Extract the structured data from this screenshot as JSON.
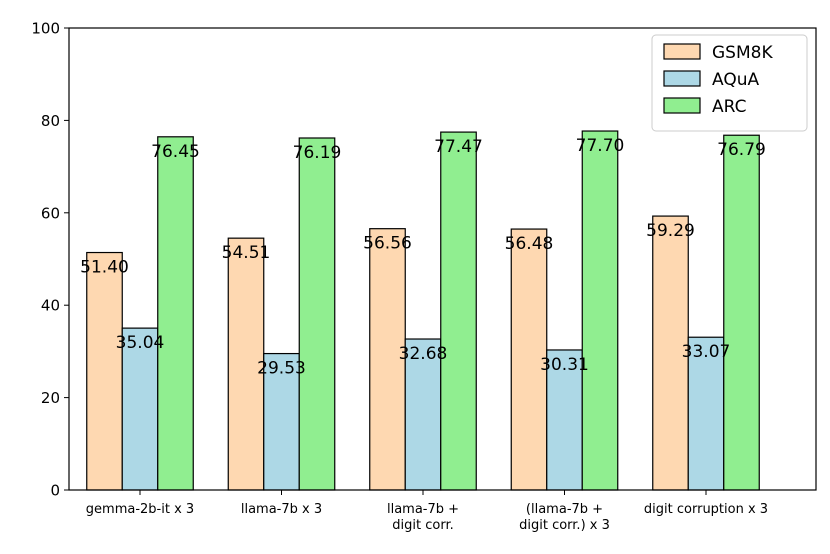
{
  "chart_data": {
    "type": "bar",
    "categories": [
      [
        "gemma-2b-it x 3"
      ],
      [
        "llama-7b x 3"
      ],
      [
        "llama-7b +",
        "digit corr."
      ],
      [
        "(llama-7b +",
        "digit corr.) x 3"
      ],
      [
        "digit corruption x 3"
      ]
    ],
    "series": [
      {
        "name": "GSM8K",
        "values": [
          51.4,
          54.51,
          56.56,
          56.48,
          59.29
        ],
        "labels": [
          "51.40",
          "54.51",
          "56.56",
          "56.48",
          "59.29"
        ],
        "color": "#fed8b1"
      },
      {
        "name": "AQuA",
        "values": [
          35.04,
          29.53,
          32.68,
          30.31,
          33.07
        ],
        "labels": [
          "35.04",
          "29.53",
          "32.68",
          "30.31",
          "33.07"
        ],
        "color": "#add8e6"
      },
      {
        "name": "ARC",
        "values": [
          76.45,
          76.19,
          77.47,
          77.7,
          76.79
        ],
        "labels": [
          "76.45",
          "76.19",
          "77.47",
          "77.70",
          "76.79"
        ],
        "color": "#90ee90"
      }
    ],
    "yticks": [
      "0",
      "20",
      "40",
      "60",
      "80",
      "100"
    ],
    "ylim": [
      0,
      100
    ],
    "title": "",
    "xlabel": "",
    "ylabel": "",
    "legend_position": "top-right",
    "grid": false
  }
}
